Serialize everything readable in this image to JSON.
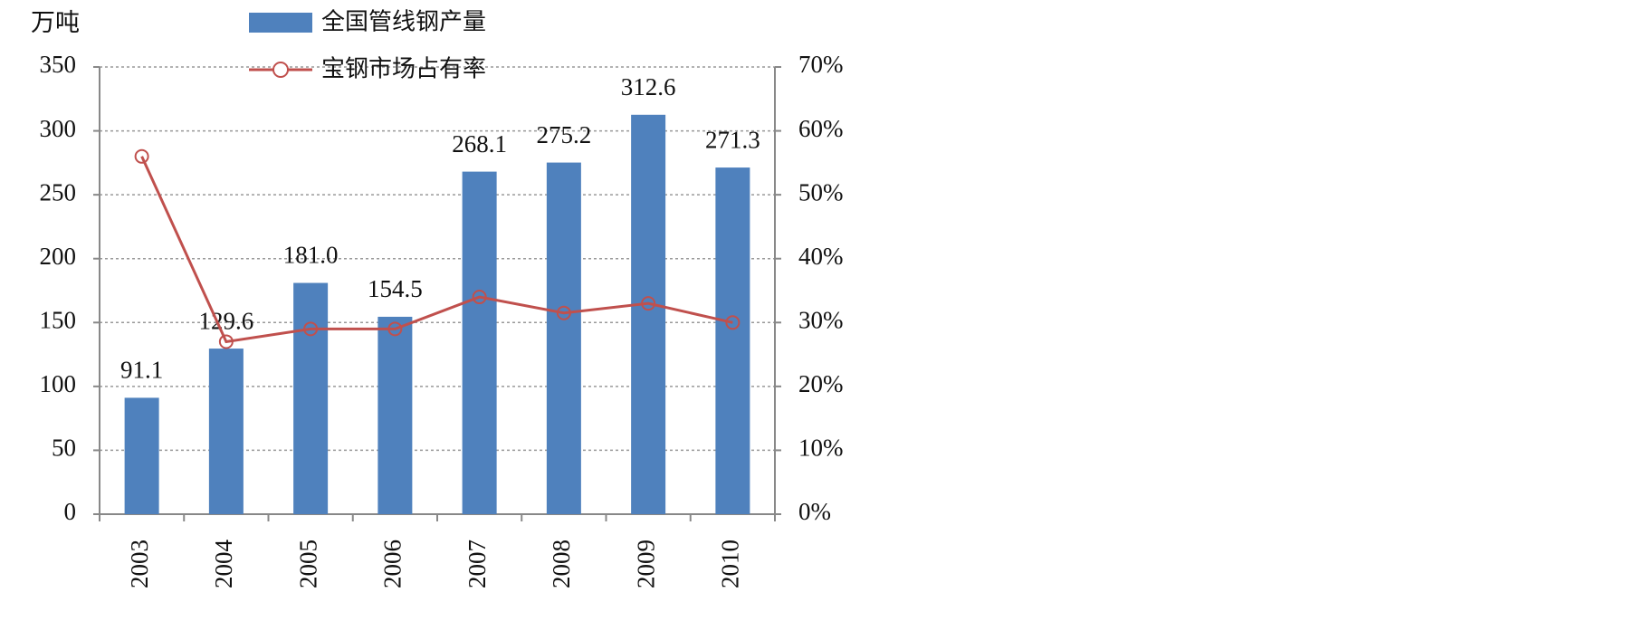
{
  "chart_data": {
    "type": "bar_line",
    "y_label": "万吨",
    "categories": [
      "2003",
      "2004",
      "2005",
      "2006",
      "2007",
      "2008",
      "2009",
      "2010"
    ],
    "series": [
      {
        "name": "全国管线钢产量",
        "type": "bar",
        "color": "#4f81bd",
        "values": [
          91.1,
          129.6,
          181.0,
          154.5,
          268.1,
          275.2,
          312.6,
          271.3
        ],
        "value_labels": [
          "91.1",
          "129.6",
          "181.0",
          "154.5",
          "268.1",
          "275.2",
          "312.6",
          "271.3"
        ]
      },
      {
        "name": "宝钢市场占有率",
        "type": "line",
        "axis": "y2",
        "color": "#c0504d",
        "values": [
          56,
          27,
          29,
          29,
          34,
          31.5,
          33,
          30
        ]
      }
    ],
    "ylim": [
      0,
      350
    ],
    "yticks": [
      0,
      50,
      100,
      150,
      200,
      250,
      300,
      350
    ],
    "y2lim": [
      0,
      70
    ],
    "y2ticks": [
      {
        "value": 0,
        "label": "0%"
      },
      {
        "value": 10,
        "label": "10%"
      },
      {
        "value": 20,
        "label": "20%"
      },
      {
        "value": 30,
        "label": "30%"
      },
      {
        "value": 40,
        "label": "40%"
      },
      {
        "value": 50,
        "label": "50%"
      },
      {
        "value": 60,
        "label": "60%"
      },
      {
        "value": 70,
        "label": "70%"
      }
    ],
    "grid": true,
    "legend": "top"
  }
}
